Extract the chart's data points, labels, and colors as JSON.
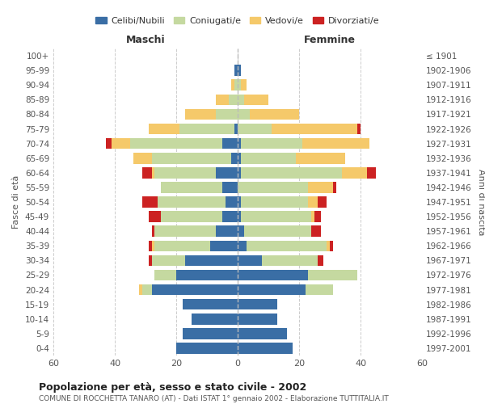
{
  "age_groups": [
    "0-4",
    "5-9",
    "10-14",
    "15-19",
    "20-24",
    "25-29",
    "30-34",
    "35-39",
    "40-44",
    "45-49",
    "50-54",
    "55-59",
    "60-64",
    "65-69",
    "70-74",
    "75-79",
    "80-84",
    "85-89",
    "90-94",
    "95-99",
    "100+"
  ],
  "birth_years": [
    "1997-2001",
    "1992-1996",
    "1987-1991",
    "1982-1986",
    "1977-1981",
    "1972-1976",
    "1967-1971",
    "1962-1966",
    "1957-1961",
    "1952-1956",
    "1947-1951",
    "1942-1946",
    "1937-1941",
    "1932-1936",
    "1927-1931",
    "1922-1926",
    "1917-1921",
    "1912-1916",
    "1907-1911",
    "1902-1906",
    "≤ 1901"
  ],
  "males": {
    "celibi": [
      20,
      18,
      15,
      18,
      28,
      20,
      17,
      9,
      7,
      5,
      4,
      5,
      7,
      2,
      5,
      1,
      0,
      0,
      0,
      1,
      0
    ],
    "coniugati": [
      0,
      0,
      0,
      0,
      3,
      7,
      11,
      18,
      20,
      20,
      22,
      20,
      20,
      26,
      30,
      18,
      7,
      3,
      1,
      0,
      0
    ],
    "vedovi": [
      0,
      0,
      0,
      0,
      1,
      0,
      0,
      1,
      0,
      0,
      0,
      0,
      1,
      6,
      6,
      10,
      10,
      4,
      1,
      0,
      0
    ],
    "divorziati": [
      0,
      0,
      0,
      0,
      0,
      0,
      1,
      1,
      1,
      4,
      5,
      0,
      3,
      0,
      2,
      0,
      0,
      0,
      0,
      0,
      0
    ]
  },
  "females": {
    "nubili": [
      18,
      16,
      13,
      13,
      22,
      23,
      8,
      3,
      2,
      1,
      1,
      0,
      1,
      1,
      1,
      0,
      0,
      0,
      0,
      1,
      0
    ],
    "coniugate": [
      0,
      0,
      0,
      0,
      9,
      16,
      18,
      26,
      22,
      23,
      22,
      23,
      33,
      18,
      20,
      11,
      4,
      2,
      1,
      0,
      0
    ],
    "vedove": [
      0,
      0,
      0,
      0,
      0,
      0,
      0,
      1,
      0,
      1,
      3,
      8,
      8,
      16,
      22,
      28,
      16,
      8,
      2,
      0,
      0
    ],
    "divorziate": [
      0,
      0,
      0,
      0,
      0,
      0,
      2,
      1,
      3,
      2,
      3,
      1,
      3,
      0,
      0,
      1,
      0,
      0,
      0,
      0,
      0
    ]
  },
  "colors": {
    "celibi": "#3a6ea5",
    "coniugati": "#c5d9a0",
    "vedovi": "#f5c96a",
    "divorziati": "#cc2222"
  },
  "xlim": 60,
  "title": "Popolazione per età, sesso e stato civile - 2002",
  "subtitle": "COMUNE DI ROCCHETTA TANARO (AT) - Dati ISTAT 1° gennaio 2002 - Elaborazione TUTTITALIA.IT",
  "ylabel": "Fasce di età",
  "ylabel_right": "Anni di nascita",
  "legend_labels": [
    "Celibi/Nubili",
    "Coniugati/e",
    "Vedovi/e",
    "Divorziati/e"
  ],
  "bg_color": "#ffffff"
}
